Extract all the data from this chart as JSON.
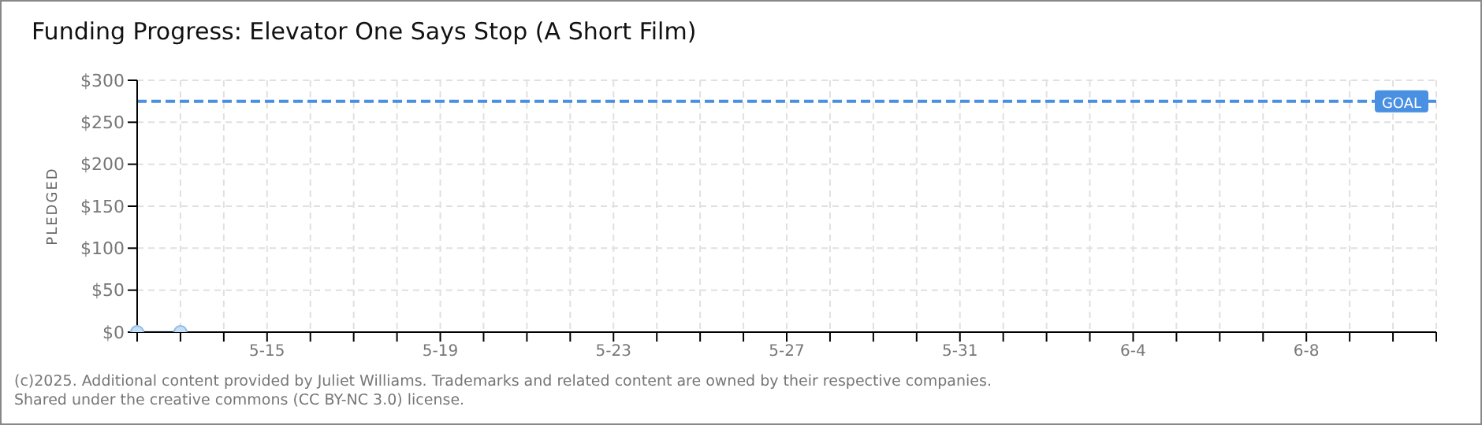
{
  "chart_data": {
    "type": "line",
    "title": "Funding Progress: Elevator One Says Stop (A Short Film)",
    "ylabel": "PLEDGED",
    "x": [
      "--05-12",
      "--05-13"
    ],
    "series": [
      {
        "color": "#a8cdf0",
        "values": [
          0,
          0
        ]
      }
    ],
    "marker": "circle",
    "grid": true,
    "ylim": [
      0,
      300
    ],
    "yticks": [
      {
        "value": 0,
        "label": "$0"
      },
      {
        "value": 50,
        "label": "$50"
      },
      {
        "value": 100,
        "label": "$100"
      },
      {
        "value": 150,
        "label": "$150"
      },
      {
        "value": 200,
        "label": "$200"
      },
      {
        "value": 250,
        "label": "$250"
      },
      {
        "value": 300,
        "label": "$300"
      }
    ],
    "xlim": [
      "--05-12",
      "--06-11"
    ],
    "xticks": [
      {
        "value": "--05-12",
        "label": null
      },
      {
        "value": "--05-13",
        "label": null
      },
      {
        "value": "--05-14",
        "label": null
      },
      {
        "value": "--05-15",
        "label": "5-15"
      },
      {
        "value": "--05-16",
        "label": null
      },
      {
        "value": "--05-17",
        "label": null
      },
      {
        "value": "--05-18",
        "label": null
      },
      {
        "value": "--05-19",
        "label": "5-19"
      },
      {
        "value": "--05-20",
        "label": null
      },
      {
        "value": "--05-21",
        "label": null
      },
      {
        "value": "--05-22",
        "label": null
      },
      {
        "value": "--05-23",
        "label": "5-23"
      },
      {
        "value": "--05-24",
        "label": null
      },
      {
        "value": "--05-25",
        "label": null
      },
      {
        "value": "--05-26",
        "label": null
      },
      {
        "value": "--05-27",
        "label": "5-27"
      },
      {
        "value": "--05-28",
        "label": null
      },
      {
        "value": "--05-29",
        "label": null
      },
      {
        "value": "--05-30",
        "label": null
      },
      {
        "value": "--05-31",
        "label": "5-31"
      },
      {
        "value": "--06-01",
        "label": null
      },
      {
        "value": "--06-02",
        "label": null
      },
      {
        "value": "--06-03",
        "label": null
      },
      {
        "value": "--06-04",
        "label": "6-4"
      },
      {
        "value": "--06-05",
        "label": null
      },
      {
        "value": "--06-06",
        "label": null
      },
      {
        "value": "--06-07",
        "label": null
      },
      {
        "value": "--06-08",
        "label": "6-8"
      },
      {
        "value": "--06-09",
        "label": null
      },
      {
        "value": "--06-10",
        "label": null
      },
      {
        "value": "--06-11",
        "label": null
      }
    ],
    "ref_lines": [
      {
        "axis": "y",
        "value": 275,
        "label": "GOAL",
        "color": "#4a90e2",
        "line_style": "dashed"
      }
    ],
    "annotations": [
      "(c)2025. Additional content provided by Juliet Williams. Trademarks and related content are owned by their respective companies.",
      "Shared under the creative commons (CC BY-NC 3.0) license."
    ]
  }
}
